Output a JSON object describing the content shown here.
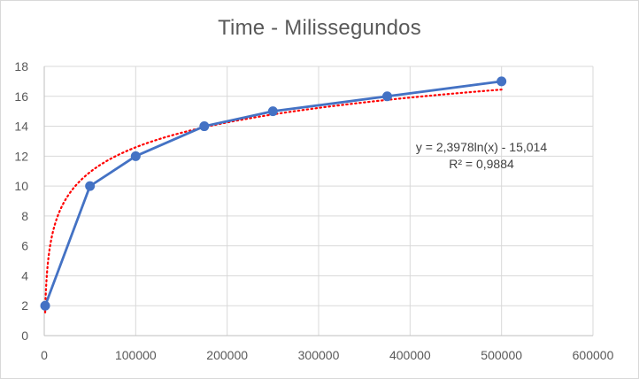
{
  "chart_data": {
    "type": "scatter",
    "title": "Time - Milissegundos",
    "xlabel": "",
    "ylabel": "",
    "xlim": [
      0,
      600000
    ],
    "ylim": [
      0,
      18
    ],
    "x_ticks": [
      0,
      100000,
      200000,
      300000,
      400000,
      500000,
      600000
    ],
    "y_ticks": [
      0,
      2,
      4,
      6,
      8,
      10,
      12,
      14,
      16,
      18
    ],
    "grid": true,
    "legend": "none",
    "series": [
      {
        "color": "#4472c4",
        "style": "line-with-markers",
        "x": [
          1000,
          50000,
          100000,
          175000,
          250000,
          375000,
          500000
        ],
        "y": [
          2,
          10,
          12,
          14,
          15,
          16,
          17
        ]
      }
    ],
    "trendline": {
      "type": "logarithmic",
      "color": "#ff0000",
      "style": "dotted",
      "a": 2.3978,
      "b": -15.014,
      "equation_label": "y = 2,3978ln(x) - 15,014",
      "r2_label": "R² = 0,9884"
    }
  }
}
